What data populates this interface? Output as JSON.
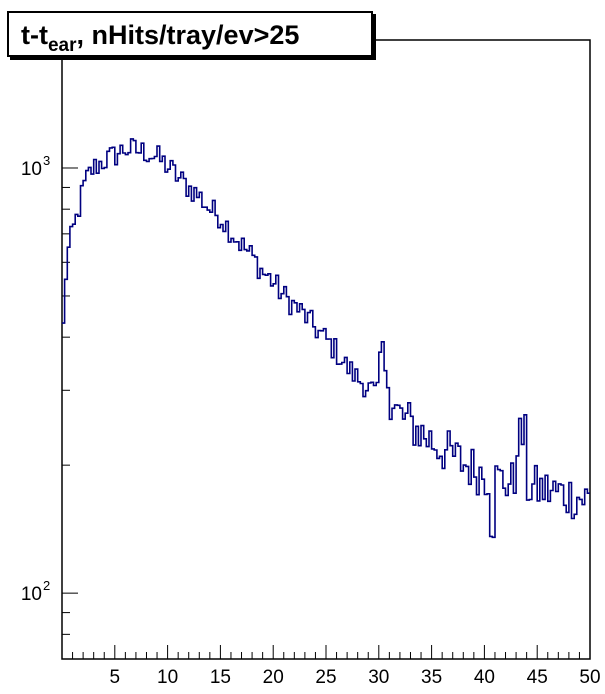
{
  "chart_data": {
    "type": "histogram-step",
    "title": {
      "main": "t-t",
      "subscript": "ear",
      "rest": ", nHits/tray/ev>25"
    },
    "xlabel": "",
    "ylabel": "",
    "xlim": [
      0,
      50
    ],
    "ylim": [
      70,
      2000
    ],
    "y_scale": "log",
    "x_ticks": [
      5,
      10,
      15,
      20,
      25,
      30,
      35,
      40,
      45,
      50
    ],
    "x_tick_labels": [
      "5",
      "10",
      "15",
      "20",
      "25",
      "30",
      "35",
      "40",
      "45",
      "50"
    ],
    "y_major_ticks": [
      100,
      1000
    ],
    "y_tick_labels": [
      {
        "base": "10",
        "exp": "2"
      },
      {
        "base": "10",
        "exp": "3"
      }
    ],
    "line_color": "#000080",
    "bin_width": 0.25,
    "x": [
      0.125,
      5.125,
      10.125,
      15.125,
      20.125,
      25.125,
      30.125,
      35.125,
      40.125,
      45.125,
      49.875
    ],
    "bin_centers_note": "",
    "keypoints_x": [
      0,
      0.25,
      0.5,
      1,
      1.5,
      2,
      2.5,
      3,
      4,
      5,
      6,
      7,
      8,
      9,
      10,
      11,
      12,
      13,
      14,
      15,
      16,
      17,
      18,
      19,
      20,
      21,
      22,
      23,
      24,
      25,
      26,
      27,
      28,
      29,
      30,
      31,
      32,
      33,
      34,
      35,
      36,
      37,
      38,
      39,
      40,
      41,
      42,
      43,
      44,
      45,
      46,
      47,
      48,
      49,
      50
    ],
    "keypoints_y": [
      350,
      510,
      620,
      700,
      780,
      890,
      960,
      1000,
      1040,
      1070,
      1110,
      1100,
      1090,
      1060,
      1010,
      950,
      900,
      860,
      800,
      770,
      710,
      660,
      620,
      570,
      540,
      500,
      475,
      450,
      420,
      395,
      370,
      340,
      320,
      305,
      290,
      275,
      262,
      250,
      238,
      228,
      218,
      210,
      202,
      196,
      190,
      186,
      183,
      180,
      178,
      176,
      174,
      172,
      170,
      168,
      166
    ]
  }
}
